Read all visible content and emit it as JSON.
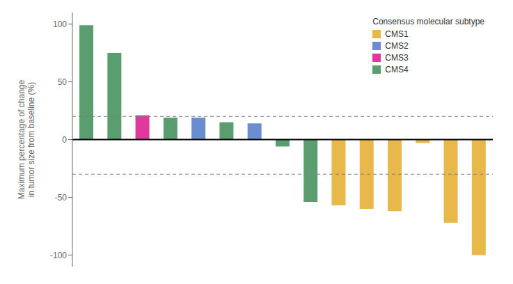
{
  "chart_data": {
    "type": "bar",
    "ylabel": "Maximum percentage of change\nin tumor size from baseline (%)",
    "categories": [
      null,
      null,
      null,
      null,
      null,
      null,
      null,
      null,
      null,
      null,
      null,
      null,
      null,
      null,
      null
    ],
    "values": [
      99,
      75,
      21,
      19,
      19,
      15,
      14,
      -6,
      -54,
      -57,
      -60,
      -62,
      -3,
      -72,
      -100
    ],
    "colors": [
      "#5a9e6f",
      "#5a9e6f",
      "#e0399e",
      "#5a9e6f",
      "#6b8cce",
      "#5a9e6f",
      "#6b8cce",
      "#5a9e6f",
      "#5a9e6f",
      "#e8b84b",
      "#e8b84b",
      "#e8b84b",
      "#e8b84b",
      "#e8b84b",
      "#e8b84b"
    ],
    "ylim": [
      -110,
      110
    ],
    "yticks": [
      -100,
      -50,
      0,
      50,
      100
    ],
    "hlines": [
      20,
      -30
    ],
    "baseline": 0,
    "legend": "upper right",
    "legend_title": "Consensus molecular subtype",
    "legend_entries": [
      {
        "name": "CMS1",
        "color": "#e8b84b"
      },
      {
        "name": "CMS2",
        "color": "#6b8cce"
      },
      {
        "name": "CMS3",
        "color": "#e0399e"
      },
      {
        "name": "CMS4",
        "color": "#5a9e6f"
      }
    ],
    "grid": false,
    "tick_labels": "y"
  }
}
